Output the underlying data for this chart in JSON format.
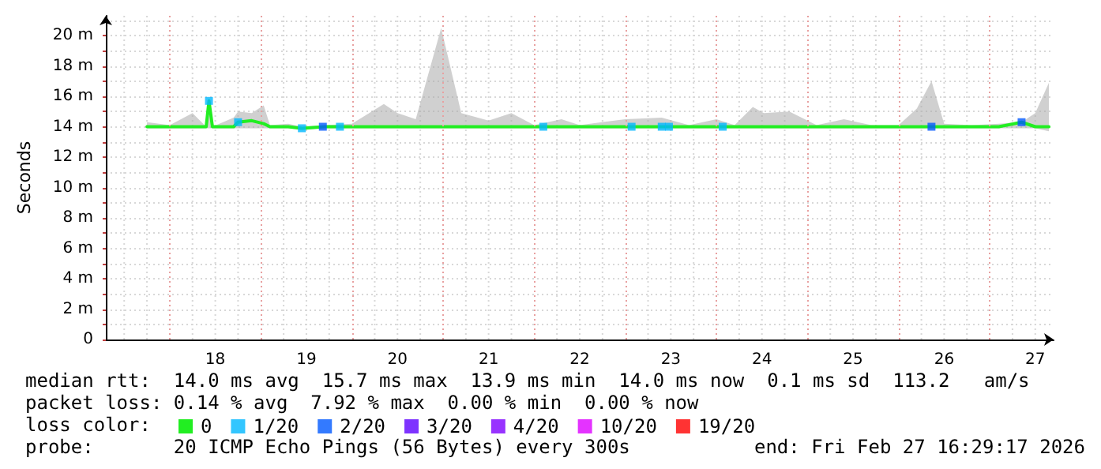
{
  "chart_data": {
    "type": "line",
    "ylabel": "Seconds",
    "legend_title": "loss color:",
    "legend": "bottom",
    "grid": true,
    "xlim": [
      "2026-02-17T07:10",
      "2026-02-27T16:50"
    ],
    "xticks": [
      {
        "value": "2026-02-18T12:00",
        "label": "18"
      },
      {
        "value": "2026-02-19T12:00",
        "label": "19"
      },
      {
        "value": "2026-02-20T12:00",
        "label": "20"
      },
      {
        "value": "2026-02-21T12:00",
        "label": "21"
      },
      {
        "value": "2026-02-22T12:00",
        "label": "22"
      },
      {
        "value": "2026-02-23T12:00",
        "label": "23"
      },
      {
        "value": "2026-02-24T12:00",
        "label": "24"
      },
      {
        "value": "2026-02-25T12:00",
        "label": "25"
      },
      {
        "value": "2026-02-26T12:00",
        "label": "26"
      },
      {
        "value": "2026-02-27T12:00",
        "label": "27"
      }
    ],
    "ylim": [
      0,
      21.3
    ],
    "yticks": [
      0,
      {
        "value": 1,
        "label": null
      },
      {
        "value": 2,
        "label": "2 m"
      },
      {
        "value": 3,
        "label": null
      },
      {
        "value": 4,
        "label": "4 m"
      },
      {
        "value": 5,
        "label": null
      },
      {
        "value": 6,
        "label": "6 m"
      },
      {
        "value": 7,
        "label": null
      },
      {
        "value": 8,
        "label": "8 m"
      },
      {
        "value": 9,
        "label": null
      },
      {
        "value": 10,
        "label": "10 m"
      },
      {
        "value": 11,
        "label": null
      },
      {
        "value": 12,
        "label": "12 m"
      },
      {
        "value": 13,
        "label": null
      },
      {
        "value": 14,
        "label": "14 m"
      },
      {
        "value": 15,
        "label": null
      },
      {
        "value": 16,
        "label": "16 m"
      },
      {
        "value": 17,
        "label": null
      },
      {
        "value": 18,
        "label": "18 m"
      },
      {
        "value": 19,
        "label": null
      },
      {
        "value": 20,
        "label": "20 m"
      },
      {
        "value": 21,
        "label": null
      }
    ],
    "x": [
      "2026-02-17T18:00",
      "2026-02-18T00:00",
      "2026-02-18T06:00",
      "2026-02-18T09:36",
      "2026-02-18T10:20",
      "2026-02-18T11:15",
      "2026-02-18T16:50",
      "2026-02-18T18:00",
      "2026-02-18T21:36",
      "2026-02-19T00:45",
      "2026-02-19T02:24",
      "2026-02-19T07:12",
      "2026-02-19T10:48",
      "2026-02-19T16:48",
      "2026-02-20T00:00",
      "2026-02-20T08:24",
      "2026-02-20T12:00",
      "2026-02-20T16:48",
      "2026-02-20T23:30",
      "2026-02-21T04:48",
      "2026-02-21T12:00",
      "2026-02-21T18:00",
      "2026-02-22T00:00",
      "2026-02-22T07:12",
      "2026-02-22T12:00",
      "2026-02-23T00:00",
      "2026-02-23T09:36",
      "2026-02-23T16:48",
      "2026-02-24T00:00",
      "2026-02-24T04:48",
      "2026-02-24T09:36",
      "2026-02-24T12:30",
      "2026-02-24T19:12",
      "2026-02-25T02:24",
      "2026-02-25T09:36",
      "2026-02-25T16:48",
      "2026-02-26T00:00",
      "2026-02-26T04:48",
      "2026-02-26T08:40",
      "2026-02-26T12:00",
      "2026-02-26T19:12",
      "2026-02-27T02:24",
      "2026-02-27T08:24",
      "2026-02-27T12:00",
      "2026-02-27T15:36"
    ],
    "series": [
      {
        "name": "0",
        "color": "#22ee22",
        "line_style": "solid",
        "marker": "none",
        "values": [
          14.0,
          14.0,
          14.0,
          14.0,
          15.7,
          14.0,
          14.0,
          14.3,
          14.4,
          14.2,
          14.0,
          14.0,
          13.9,
          14.0,
          14.0,
          14.0,
          14.0,
          14.0,
          14.0,
          14.0,
          14.0,
          14.0,
          14.0,
          14.0,
          14.0,
          14.0,
          14.0,
          14.0,
          14.0,
          14.0,
          14.0,
          14.0,
          14.0,
          14.0,
          14.0,
          14.0,
          14.0,
          14.0,
          14.0,
          14.0,
          14.0,
          14.0,
          14.3,
          14.0,
          14.0
        ],
        "lower": [
          13.9,
          13.9,
          13.9,
          13.9,
          13.9,
          13.9,
          13.9,
          13.9,
          13.9,
          13.9,
          13.9,
          13.9,
          13.8,
          13.9,
          13.9,
          13.9,
          13.9,
          13.9,
          13.9,
          13.9,
          13.9,
          13.9,
          13.9,
          13.9,
          13.9,
          13.9,
          13.9,
          13.9,
          13.9,
          13.9,
          13.9,
          13.9,
          13.9,
          13.9,
          13.9,
          13.9,
          13.9,
          13.9,
          13.9,
          13.9,
          13.9,
          13.9,
          13.9,
          13.9,
          13.7
        ],
        "upper": [
          14.3,
          14.1,
          14.9,
          14.0,
          15.8,
          14.0,
          14.6,
          15.0,
          14.9,
          15.4,
          14.1,
          14.2,
          14.0,
          14.1,
          14.2,
          15.5,
          14.9,
          14.5,
          20.5,
          14.9,
          14.4,
          14.9,
          14.1,
          14.5,
          14.1,
          14.5,
          14.6,
          14.1,
          14.5,
          14.1,
          15.3,
          14.9,
          15.0,
          14.1,
          14.5,
          14.1,
          14.1,
          15.2,
          17.0,
          14.2,
          14.1,
          14.2,
          14.3,
          14.9,
          16.9
        ]
      },
      {
        "name": "1/20",
        "color": "#00b8ff",
        "type": "scatter",
        "marker": "square",
        "x": [
          "2026-02-18T10:20",
          "2026-02-18T18:00",
          "2026-02-19T10:48",
          "2026-02-19T20:50",
          "2026-02-22T02:24",
          "2026-02-23T01:40",
          "2026-02-23T09:36",
          "2026-02-23T11:30",
          "2026-02-24T01:40"
        ],
        "values": [
          15.7,
          14.3,
          13.9,
          14.0,
          14.0,
          14.0,
          14.0,
          14.0,
          14.0
        ]
      },
      {
        "name": "2/20",
        "color": "#0059ff",
        "type": "scatter",
        "marker": "square",
        "x": [
          "2026-02-19T16:20",
          "2026-02-26T08:40",
          "2026-02-27T08:24"
        ],
        "values": [
          14.0,
          14.0,
          14.3
        ]
      },
      {
        "name": "3/20",
        "color": "#5e00ff",
        "type": "scatter",
        "marker": "square",
        "values": [
          null,
          null,
          null,
          null,
          null,
          null,
          null,
          null,
          null,
          null,
          null,
          null,
          null,
          null,
          null,
          null,
          null,
          null,
          null,
          null,
          null,
          null,
          null,
          null,
          null,
          null,
          null,
          null,
          null,
          null,
          null,
          null,
          null,
          null,
          null,
          null,
          null,
          null,
          null,
          null,
          null,
          null,
          null,
          null,
          null
        ]
      },
      {
        "name": "4/20",
        "color": "#7e00ff",
        "type": "scatter",
        "marker": "square",
        "values": [
          null,
          null,
          null,
          null,
          null,
          null,
          null,
          null,
          null,
          null,
          null,
          null,
          null,
          null,
          null,
          null,
          null,
          null,
          null,
          null,
          null,
          null,
          null,
          null,
          null,
          null,
          null,
          null,
          null,
          null,
          null,
          null,
          null,
          null,
          null,
          null,
          null,
          null,
          null,
          null,
          null,
          null,
          null,
          null,
          null
        ]
      },
      {
        "name": "10/20",
        "color": "#dd00ff",
        "type": "scatter",
        "marker": "square",
        "values": [
          null,
          null,
          null,
          null,
          null,
          null,
          null,
          null,
          null,
          null,
          null,
          null,
          null,
          null,
          null,
          null,
          null,
          null,
          null,
          null,
          null,
          null,
          null,
          null,
          null,
          null,
          null,
          null,
          null,
          null,
          null,
          null,
          null,
          null,
          null,
          null,
          null,
          null,
          null,
          null,
          null,
          null,
          null,
          null,
          null
        ]
      },
      {
        "name": "19/20",
        "color": "#ff0000",
        "type": "scatter",
        "marker": "square",
        "values": [
          null,
          null,
          null,
          null,
          null,
          null,
          null,
          null,
          null,
          null,
          null,
          null,
          null,
          null,
          null,
          null,
          null,
          null,
          null,
          null,
          null,
          null,
          null,
          null,
          null,
          null,
          null,
          null,
          null,
          null,
          null,
          null,
          null,
          null,
          null,
          null,
          null,
          null,
          null,
          null,
          null,
          null,
          null,
          null,
          null
        ]
      }
    ],
    "ref_lines": [
      {
        "axis": "x",
        "value": "2026-02-18T00:00",
        "label": null,
        "color": "#e8a0a0",
        "line_style": "dotted"
      },
      {
        "axis": "x",
        "value": "2026-02-19T00:00",
        "label": null,
        "color": "#e8a0a0",
        "line_style": "dotted"
      },
      {
        "axis": "x",
        "value": "2026-02-20T00:00",
        "label": null,
        "color": "#e8a0a0",
        "line_style": "dotted"
      },
      {
        "axis": "x",
        "value": "2026-02-21T00:00",
        "label": null,
        "color": "#e8a0a0",
        "line_style": "dotted"
      },
      {
        "axis": "x",
        "value": "2026-02-22T00:00",
        "label": null,
        "color": "#e8a0a0",
        "line_style": "dotted"
      },
      {
        "axis": "x",
        "value": "2026-02-23T00:00",
        "label": null,
        "color": "#e8a0a0",
        "line_style": "dotted"
      },
      {
        "axis": "x",
        "value": "2026-02-24T00:00",
        "label": null,
        "color": "#e8a0a0",
        "line_style": "dotted"
      },
      {
        "axis": "x",
        "value": "2026-02-25T00:00",
        "label": null,
        "color": "#e8a0a0",
        "line_style": "dotted"
      },
      {
        "axis": "x",
        "value": "2026-02-26T00:00",
        "label": null,
        "color": "#e8a0a0",
        "line_style": "dotted"
      },
      {
        "axis": "x",
        "value": "2026-02-27T00:00",
        "label": null,
        "color": "#e8a0a0",
        "line_style": "dotted"
      }
    ],
    "annotations": [
      "median rtt:  14.0 ms avg  15.7 ms max  13.9 ms min  14.0 ms now  0.1 ms sd  113.2   am/s",
      "packet loss: 0.14 % avg  7.92 % max  0.00 % min  0.00 % now",
      "probe:       20 ICMP Echo Pings (56 Bytes) every 300s",
      "end: Fri Feb 27 16:29:17 2026"
    ]
  }
}
